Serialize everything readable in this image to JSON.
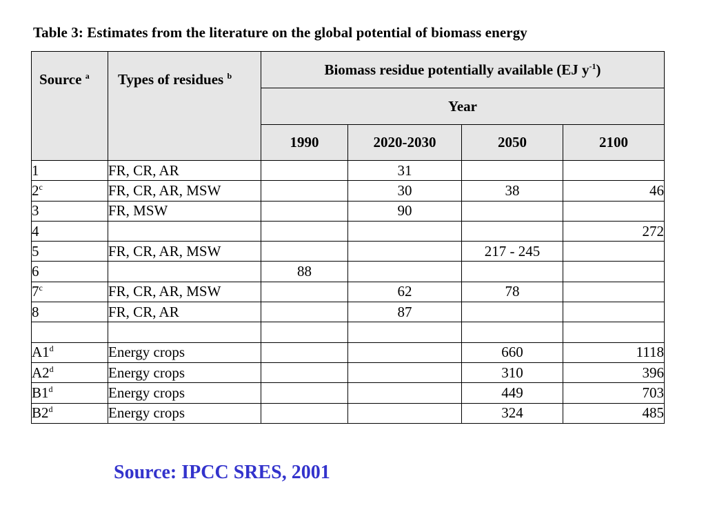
{
  "caption": "Table 3: Estimates from the literature on the global potential of biomass energy",
  "header": {
    "source": "Source",
    "source_sup": "a",
    "types": "Types of residues",
    "types_sup": "b",
    "biomass_pre": "Biomass residue potentially available (EJ y",
    "biomass_sup": "-1",
    "biomass_post": ")",
    "year": "Year",
    "years": [
      "1990",
      "2020-2030",
      "2050",
      "2100"
    ]
  },
  "rows": [
    {
      "source": "1",
      "sup": "",
      "types": "FR, CR, AR",
      "y1990": "",
      "y2020": "31",
      "y2050": "",
      "y2100": ""
    },
    {
      "source": "2",
      "sup": "c",
      "types": "FR, CR, AR, MSW",
      "y1990": "",
      "y2020": "30",
      "y2050": "38",
      "y2100": "46"
    },
    {
      "source": "3",
      "sup": "",
      "types": "FR, MSW",
      "y1990": "",
      "y2020": "90",
      "y2050": "",
      "y2100": ""
    },
    {
      "source": "4",
      "sup": "",
      "types": "",
      "y1990": "",
      "y2020": "",
      "y2050": "",
      "y2100": "272"
    },
    {
      "source": "5",
      "sup": "",
      "types": "FR, CR, AR, MSW",
      "y1990": "",
      "y2020": "",
      "y2050": "217 - 245",
      "y2100": ""
    },
    {
      "source": "6",
      "sup": "",
      "types": "",
      "y1990": "88",
      "y2020": "",
      "y2050": "",
      "y2100": ""
    },
    {
      "source": "7",
      "sup": "c",
      "types": "FR, CR, AR, MSW",
      "y1990": "",
      "y2020": "62",
      "y2050": "78",
      "y2100": ""
    },
    {
      "source": "8",
      "sup": "",
      "types": "FR, CR, AR",
      "y1990": "",
      "y2020": "87",
      "y2050": "",
      "y2100": ""
    },
    {
      "source": "",
      "sup": "",
      "types": "",
      "y1990": "",
      "y2020": "",
      "y2050": "",
      "y2100": ""
    },
    {
      "source": "A1",
      "sup": "d",
      "types": "Energy crops",
      "y1990": "",
      "y2020": "",
      "y2050": "660",
      "y2100": "1118"
    },
    {
      "source": "A2",
      "sup": "d",
      "types": "Energy crops",
      "y1990": "",
      "y2020": "",
      "y2050": "310",
      "y2100": "396"
    },
    {
      "source": "B1",
      "sup": "d",
      "types": "Energy crops",
      "y1990": "",
      "y2020": "",
      "y2050": "449",
      "y2100": "703"
    },
    {
      "source": "B2",
      "sup": "d",
      "types": "Energy crops",
      "y1990": "",
      "y2020": "",
      "y2050": "324",
      "y2100": "485"
    }
  ],
  "footer_source": "Source: IPCC SRES, 2001",
  "colors": {
    "header_bg": "#e6e6e6",
    "source_text": "#3333cc"
  }
}
